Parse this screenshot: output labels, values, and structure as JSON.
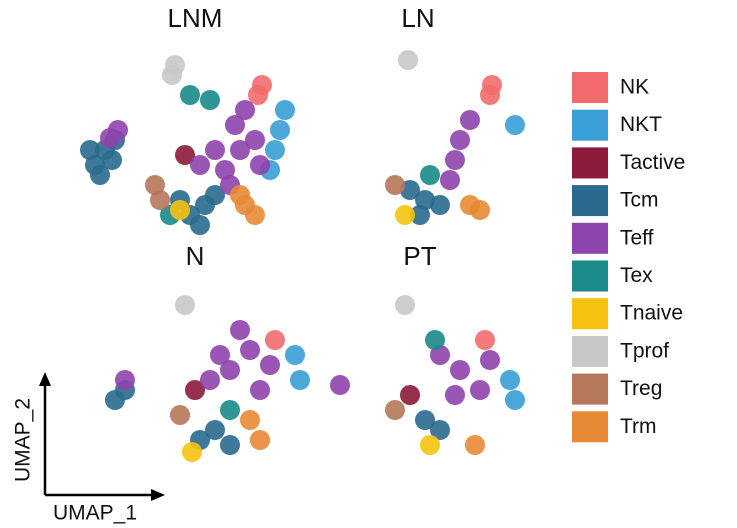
{
  "chart_data": {
    "type": "scatter",
    "x_label": "UMAP_1",
    "y_label": "UMAP_2",
    "series": [
      {
        "name": "NK",
        "color": "#f26b6b"
      },
      {
        "name": "NKT",
        "color": "#3a9fd6"
      },
      {
        "name": "Tactive",
        "color": "#8c1a3a"
      },
      {
        "name": "Tcm",
        "color": "#2a6a8e"
      },
      {
        "name": "Teff",
        "color": "#8e44ad"
      },
      {
        "name": "Tex",
        "color": "#1a8a8a"
      },
      {
        "name": "Tnaive",
        "color": "#f5c211"
      },
      {
        "name": "Tprof",
        "color": "#c8c8c8"
      },
      {
        "name": "Treg",
        "color": "#b5785a"
      },
      {
        "name": "Trm",
        "color": "#e88a35"
      }
    ],
    "panels": [
      {
        "title": "LNM",
        "xlim": [
          0,
          250
        ],
        "ylim": [
          0,
          200
        ],
        "points": [
          {
            "x": [
              183,
              187
            ],
            "y": [
              150,
              160
            ]
          },
          {
            "x": [
              205,
              210,
              200,
              195
            ],
            "y": [
              115,
              135,
              95,
              75
            ]
          },
          {
            "x": [
              110
            ],
            "y": [
              90
            ]
          },
          {
            "x": [
              20,
              30,
              40,
              25,
              37,
              15,
              130,
              115,
              140,
              125,
              105
            ],
            "y": [
              80,
              95,
              105,
              70,
              85,
              95,
              40,
              30,
              50,
              20,
              45
            ]
          },
          {
            "x": [
              43,
              35,
              165,
              150,
              180,
              160,
              140,
              185,
              170,
              155,
              125
            ],
            "y": [
              115,
              107,
              95,
              75,
              105,
              120,
              95,
              80,
              135,
              60,
              80
            ]
          },
          {
            "x": [
              115,
              135,
              95
            ],
            "y": [
              150,
              145,
              30
            ]
          },
          {
            "x": [
              105
            ],
            "y": [
              35
            ]
          },
          {
            "x": [
              100,
              97
            ],
            "y": [
              180,
              170
            ]
          },
          {
            "x": [
              80,
              85
            ],
            "y": [
              60,
              45
            ]
          },
          {
            "x": [
              170,
              180,
              165
            ],
            "y": [
              40,
              30,
              50
            ]
          }
        ]
      },
      {
        "title": "LN",
        "xlim": [
          0,
          250
        ],
        "ylim": [
          0,
          200
        ],
        "points": [
          {
            "x": [
              120,
              122
            ],
            "y": [
              150,
              160
            ]
          },
          {
            "x": [
              145
            ],
            "y": [
              120
            ]
          },
          {
            "x": [],
            "y": []
          },
          {
            "x": [
              55,
              40,
              70,
              50
            ],
            "y": [
              45,
              55,
              40,
              30
            ]
          },
          {
            "x": [
              90,
              85,
              100,
              80
            ],
            "y": [
              105,
              85,
              125,
              65
            ]
          },
          {
            "x": [
              60
            ],
            "y": [
              70
            ]
          },
          {
            "x": [
              35
            ],
            "y": [
              30
            ]
          },
          {
            "x": [
              38
            ],
            "y": [
              185
            ]
          },
          {
            "x": [
              25
            ],
            "y": [
              60
            ]
          },
          {
            "x": [
              100,
              110
            ],
            "y": [
              40,
              35
            ]
          }
        ]
      },
      {
        "title": "N",
        "xlim": [
          0,
          250
        ],
        "ylim": [
          0,
          200
        ],
        "points": [
          {
            "x": [
              185
            ],
            "y": [
              130
            ]
          },
          {
            "x": [
              205,
              210
            ],
            "y": [
              115,
              90
            ]
          },
          {
            "x": [
              105
            ],
            "y": [
              80
            ]
          },
          {
            "x": [
              25,
              35,
              125,
              140,
              110
            ],
            "y": [
              70,
              80,
              40,
              25,
              30
            ]
          },
          {
            "x": [
              35,
              140,
              160,
              120,
              170,
              150,
              130,
              180,
              250
            ],
            "y": [
              90,
              100,
              120,
              90,
              80,
              140,
              115,
              105,
              85
            ]
          },
          {
            "x": [
              140
            ],
            "y": [
              60
            ]
          },
          {
            "x": [
              102
            ],
            "y": [
              18
            ]
          },
          {
            "x": [
              95
            ],
            "y": [
              165
            ]
          },
          {
            "x": [
              90
            ],
            "y": [
              55
            ]
          },
          {
            "x": [
              170,
              160
            ],
            "y": [
              30,
              50
            ]
          }
        ]
      },
      {
        "title": "PT",
        "xlim": [
          0,
          250
        ],
        "ylim": [
          0,
          200
        ],
        "points": [
          {
            "x": [
              105
            ],
            "y": [
              130
            ]
          },
          {
            "x": [
              130,
              135
            ],
            "y": [
              90,
              70
            ]
          },
          {
            "x": [
              30
            ],
            "y": [
              75
            ]
          },
          {
            "x": [
              60,
              45
            ],
            "y": [
              40,
              50
            ]
          },
          {
            "x": [
              80,
              100,
              60,
              110,
              75
            ],
            "y": [
              100,
              80,
              115,
              110,
              75
            ]
          },
          {
            "x": [
              55
            ],
            "y": [
              130
            ]
          },
          {
            "x": [
              50
            ],
            "y": [
              25
            ]
          },
          {
            "x": [
              25
            ],
            "y": [
              165
            ]
          },
          {
            "x": [
              15
            ],
            "y": [
              60
            ]
          },
          {
            "x": [
              95
            ],
            "y": [
              25
            ]
          }
        ]
      }
    ]
  }
}
